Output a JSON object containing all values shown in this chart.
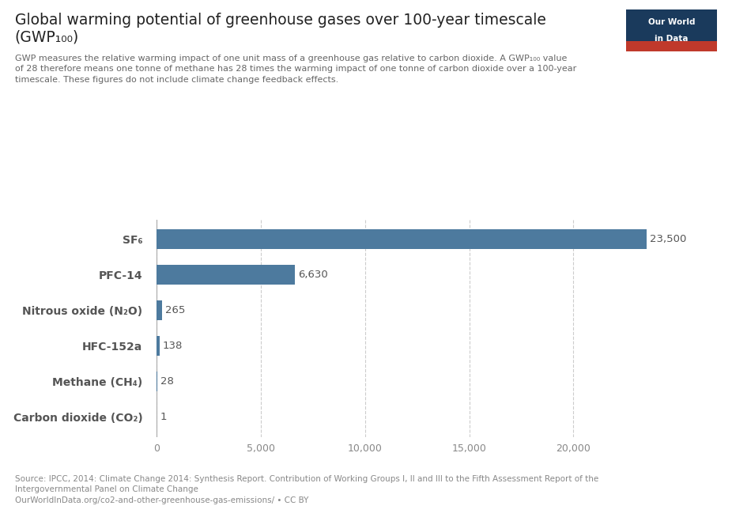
{
  "title_line1": "Global warming potential of greenhouse gases over 100-year timescale",
  "title_line2": "(GWP₁₀₀)",
  "subtitle": "GWP measures the relative warming impact of one unit mass of a greenhouse gas relative to carbon dioxide. A GWP₁₀₀ value\nof 28 therefore means one tonne of methane has 28 times the warming impact of one tonne of carbon dioxide over a 100-year\ntimescale. These figures do not include climate change feedback effects.",
  "categories": [
    "SF₆",
    "PFC-14",
    "Nitrous oxide (N₂O)",
    "HFC-152a",
    "Methane (CH₄)",
    "Carbon dioxide (CO₂)"
  ],
  "values": [
    23500,
    6630,
    265,
    138,
    28,
    1
  ],
  "bar_color": "#4d7a9e",
  "label_color": "#555555",
  "tick_color": "#888888",
  "bg_color": "#ffffff",
  "source_text": "Source: IPCC, 2014: Climate Change 2014: Synthesis Report. Contribution of Working Groups I, II and III to the Fifth Assessment Report of the\nIntergovernmental Panel on Climate Change\nOurWorldInData.org/co2-and-other-greenhouse-gas-emissions/ • CC BY",
  "xlim": [
    -500,
    25500
  ],
  "xticks": [
    0,
    5000,
    10000,
    15000,
    20000
  ],
  "xtick_labels": [
    "0",
    "5,000",
    "10,000",
    "15,000",
    "20,000"
  ],
  "logo_bg": "#1a3a5c",
  "logo_text_top": "Our World",
  "logo_text_bottom": "in Data",
  "logo_red": "#c0392b"
}
